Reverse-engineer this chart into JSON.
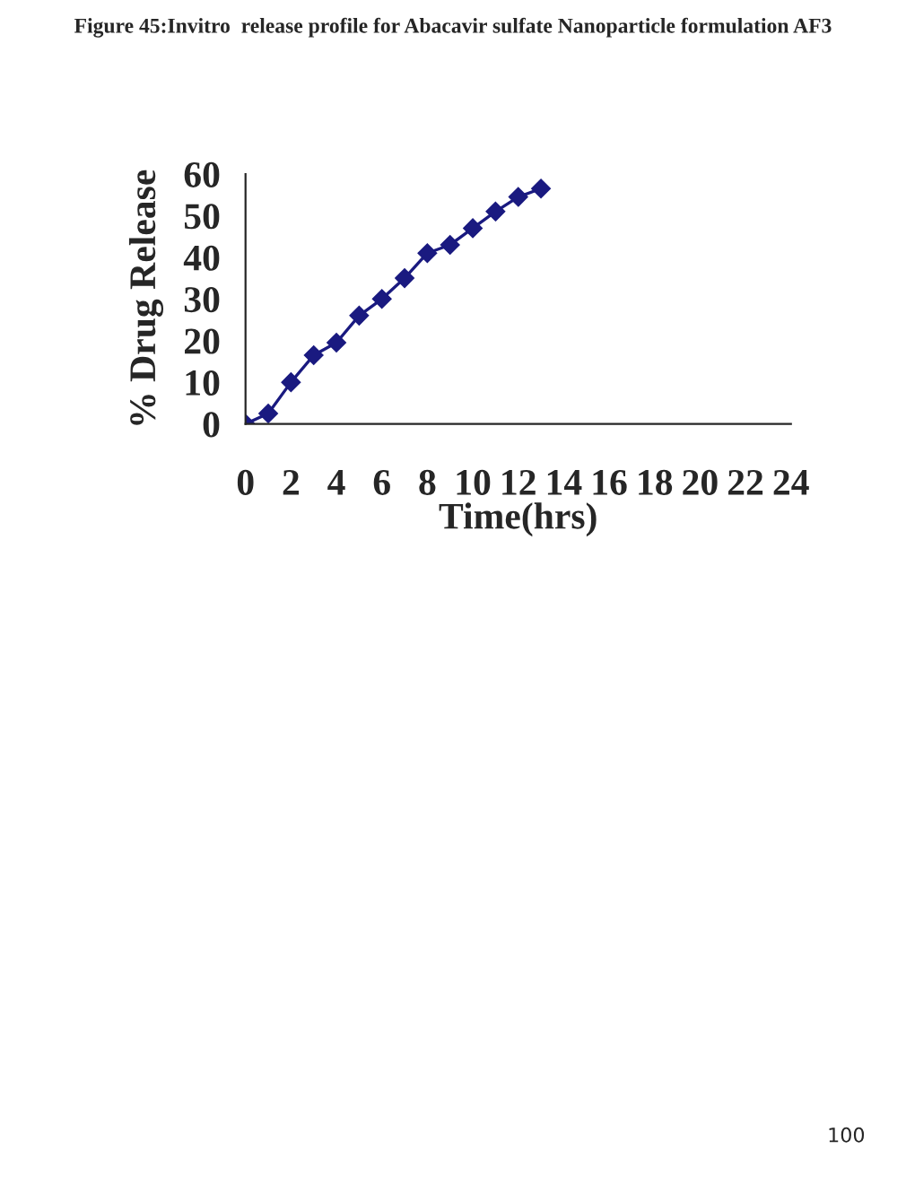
{
  "chart_data": {
    "type": "line",
    "title": "Figure 45:Invitro  release profile for Abacavir sulfate Nanoparticle formulation AF3",
    "xlabel": "Time(hrs)",
    "ylabel": "% Drug Release",
    "x": [
      0,
      1,
      2,
      3,
      4,
      5,
      6,
      7,
      8,
      9,
      10,
      11,
      12,
      13
    ],
    "series": [
      {
        "color": "#1a1a80",
        "values": [
          0,
          2.5,
          10,
          16.5,
          19.5,
          26,
          30,
          35,
          41,
          43,
          47,
          51,
          54.5,
          56.5
        ]
      }
    ],
    "xlim": [
      0,
      24
    ],
    "xticks": [
      0,
      2,
      4,
      6,
      8,
      10,
      12,
      14,
      16,
      18,
      20,
      22,
      24
    ],
    "ylim": [
      0,
      60
    ],
    "yticks": [
      0,
      10,
      20,
      30,
      40,
      50,
      60
    ],
    "marker": "diamond",
    "line_style": "solid",
    "grid": false,
    "legend": false,
    "annotations": [
      "100"
    ]
  }
}
